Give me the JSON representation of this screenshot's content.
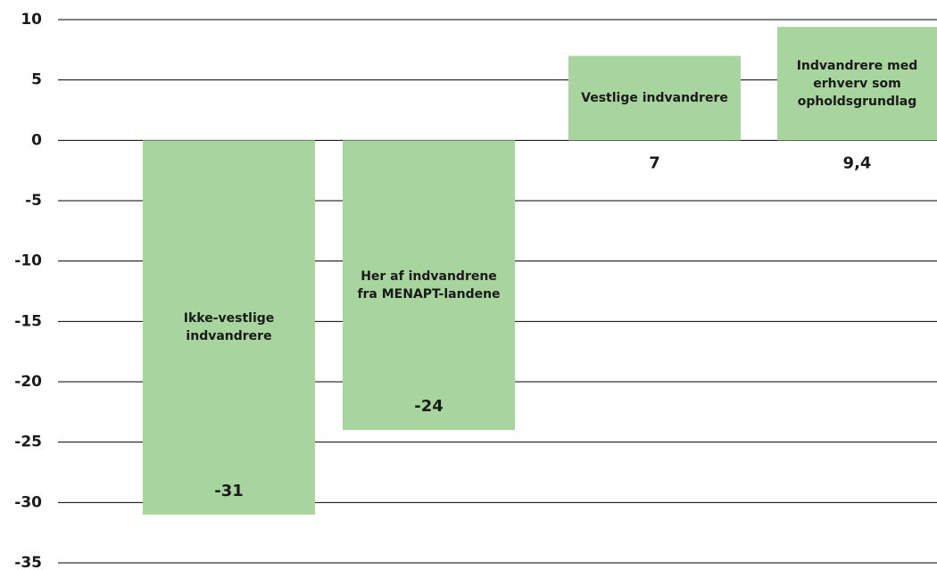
{
  "chart_data": {
    "type": "bar",
    "categories": [
      "Ikke-vestlige indvandrere",
      "Her af indvandrene fra MENAPT-landene",
      "Vestlige indvandrere",
      "Indvandrere med erhverv som opholdsgrundlag"
    ],
    "values": [
      -31,
      -24,
      7,
      9.4
    ],
    "value_labels": [
      "-31",
      "-24",
      "7",
      "9,4"
    ],
    "color": "#a8d49e",
    "ylim": [
      -35,
      10
    ],
    "yticks": [
      -35,
      -30,
      -25,
      -20,
      -15,
      -10,
      -5,
      0,
      5,
      10
    ],
    "grid": true
  }
}
